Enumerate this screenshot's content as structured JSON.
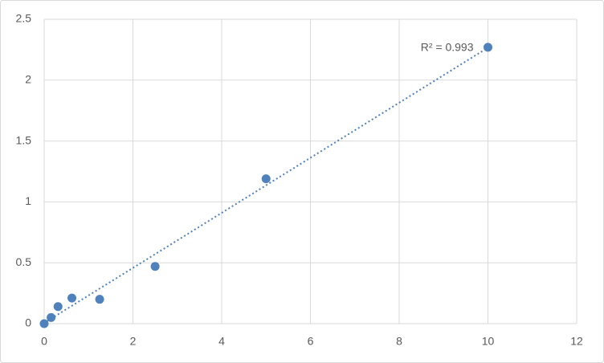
{
  "chart_data": {
    "type": "scatter",
    "x": [
      0,
      0.156,
      0.312,
      0.625,
      1.25,
      2.5,
      5,
      10
    ],
    "values": [
      0,
      0.05,
      0.14,
      0.21,
      0.2,
      0.47,
      1.19,
      2.27
    ],
    "color": "#4f81bd",
    "xlim": [
      0,
      12
    ],
    "xticks": [
      0,
      2,
      4,
      6,
      8,
      10,
      12
    ],
    "ylim": [
      0,
      2.5
    ],
    "yticks": [
      0,
      0.5,
      1,
      1.5,
      2,
      2.5
    ],
    "grid": true,
    "trendline": "linear",
    "annotation": "R² = 0.993"
  }
}
